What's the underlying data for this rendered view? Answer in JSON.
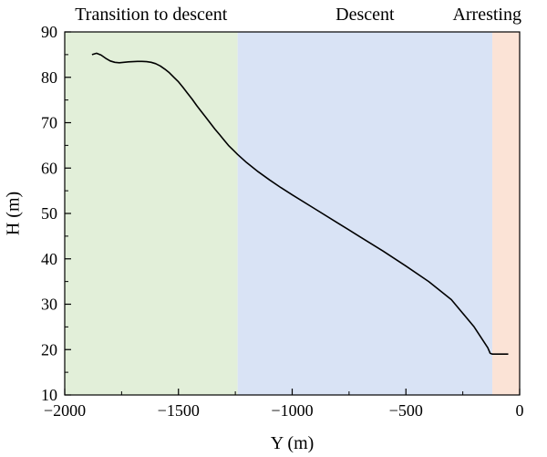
{
  "chart_data": {
    "type": "line",
    "xlabel": "Y (m)",
    "ylabel": "H (m)",
    "xlim": [
      -2000,
      0
    ],
    "ylim": [
      10,
      90
    ],
    "xticks": [
      -2000,
      -1500,
      -1000,
      -500,
      0
    ],
    "yticks": [
      10,
      20,
      30,
      40,
      50,
      60,
      70,
      80,
      90
    ],
    "x_tick_labels": [
      "−2000",
      "−1500",
      "−1000",
      "−500",
      "0"
    ],
    "y_tick_labels": [
      "10",
      "20",
      "30",
      "40",
      "50",
      "60",
      "70",
      "80",
      "90"
    ],
    "minor_ticks": true,
    "grid": false,
    "phases": [
      {
        "label": "Transition to descent",
        "x_start": -2000,
        "x_end": -1240,
        "color": "#e2efd9"
      },
      {
        "label": "Descent",
        "x_start": -1240,
        "x_end": -120,
        "color": "#d9e3f5"
      },
      {
        "label": "Arresting",
        "x_start": -120,
        "x_end": 0,
        "color": "#fbe3d6"
      }
    ],
    "series": [
      {
        "color": "#000000",
        "points": [
          [
            -1880,
            85.0
          ],
          [
            -1860,
            85.3
          ],
          [
            -1840,
            84.9
          ],
          [
            -1820,
            84.2
          ],
          [
            -1800,
            83.6
          ],
          [
            -1780,
            83.3
          ],
          [
            -1760,
            83.2
          ],
          [
            -1740,
            83.3
          ],
          [
            -1720,
            83.4
          ],
          [
            -1700,
            83.45
          ],
          [
            -1680,
            83.5
          ],
          [
            -1660,
            83.5
          ],
          [
            -1640,
            83.45
          ],
          [
            -1620,
            83.3
          ],
          [
            -1600,
            83.0
          ],
          [
            -1580,
            82.5
          ],
          [
            -1560,
            81.8
          ],
          [
            -1540,
            81.0
          ],
          [
            -1520,
            80.0
          ],
          [
            -1500,
            79.0
          ],
          [
            -1480,
            77.8
          ],
          [
            -1460,
            76.5
          ],
          [
            -1440,
            75.2
          ],
          [
            -1420,
            73.8
          ],
          [
            -1400,
            72.5
          ],
          [
            -1380,
            71.2
          ],
          [
            -1360,
            69.9
          ],
          [
            -1340,
            68.6
          ],
          [
            -1320,
            67.4
          ],
          [
            -1300,
            66.2
          ],
          [
            -1280,
            65.0
          ],
          [
            -1260,
            64.0
          ],
          [
            -1240,
            63.0
          ],
          [
            -1200,
            61.2
          ],
          [
            -1150,
            59.2
          ],
          [
            -1100,
            57.4
          ],
          [
            -1050,
            55.7
          ],
          [
            -1000,
            54.1
          ],
          [
            -900,
            51.0
          ],
          [
            -800,
            47.9
          ],
          [
            -700,
            44.8
          ],
          [
            -600,
            41.7
          ],
          [
            -500,
            38.4
          ],
          [
            -400,
            35.0
          ],
          [
            -300,
            31.0
          ],
          [
            -200,
            25.0
          ],
          [
            -140,
            20.4
          ],
          [
            -130,
            19.2
          ],
          [
            -120,
            19.0
          ],
          [
            -80,
            19.0
          ],
          [
            -50,
            19.0
          ]
        ]
      }
    ]
  }
}
